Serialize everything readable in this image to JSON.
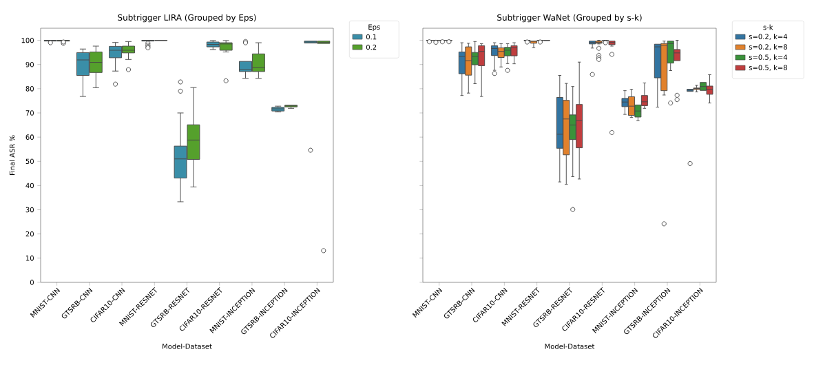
{
  "chart_data": [
    {
      "type": "box",
      "title": "Subtrigger LIRA (Grouped by Eps)",
      "xlabel": "Model-Dataset",
      "ylabel": "Final ASR %",
      "legend_title": "Eps",
      "legend": "top right",
      "categories": [
        "MNIST-CNN",
        "GTSRB-CNN",
        "CIFAR10-CNN",
        "MNIST-RESNET",
        "GTSRB-RESNET",
        "CIFAR10-RESNET",
        "MNIST-INCEPTION",
        "GTSRB-INCEPTION",
        "CIFAR10-INCEPTION"
      ],
      "ylim": [
        0,
        105
      ],
      "yticks": [
        0,
        10,
        20,
        30,
        40,
        50,
        60,
        70,
        80,
        90,
        100
      ],
      "series": [
        {
          "name": "0.1",
          "color": "#3a8ea8",
          "boxes": [
            {
              "low": 99.7,
              "q1": 99.7,
              "median": 99.9,
              "q3": 100,
              "high": 100,
              "outliers": [
                99.0
              ]
            },
            {
              "low": 76.8,
              "q1": 85.5,
              "median": 91.9,
              "q3": 94.9,
              "high": 96.4
            },
            {
              "low": 87.3,
              "q1": 92.8,
              "median": 95.9,
              "q3": 97.5,
              "high": 99.1,
              "outliers": [
                81.9
              ]
            },
            {
              "low": 99.7,
              "q1": 99.7,
              "median": 100,
              "q3": 100,
              "high": 100,
              "outliers": [
                98.8,
                98.0,
                97.4,
                96.9
              ]
            },
            {
              "low": 33.3,
              "q1": 43.1,
              "median": 51.0,
              "q3": 56.3,
              "high": 70.0,
              "outliers": [
                82.8,
                79.0
              ]
            },
            {
              "low": 96.2,
              "q1": 97.3,
              "median": 98.3,
              "q3": 99.3,
              "high": 99.9
            },
            {
              "low": 84.3,
              "q1": 87.1,
              "median": 87.9,
              "q3": 91.3,
              "high": 91.3,
              "outliers": [
                99.5,
                99.0
              ]
            },
            {
              "low": 70.4,
              "q1": 70.8,
              "median": 71.7,
              "q3": 72.3,
              "high": 72.8
            },
            {
              "low": 98.9,
              "q1": 98.9,
              "median": 99.3,
              "q3": 99.7,
              "high": 99.7,
              "outliers": [
                54.6
              ]
            }
          ]
        },
        {
          "name": "0.2",
          "color": "#55a02c",
          "boxes": [
            {
              "low": 99.7,
              "q1": 99.7,
              "median": 99.9,
              "q3": 100,
              "high": 100,
              "outliers": [
                98.8,
                99.3
              ]
            },
            {
              "low": 80.4,
              "q1": 86.7,
              "median": 90.9,
              "q3": 95.2,
              "high": 97.6
            },
            {
              "low": 92.1,
              "q1": 94.8,
              "median": 95.9,
              "q3": 97.6,
              "high": 99.5,
              "outliers": [
                87.9
              ]
            },
            {
              "low": 99.9,
              "q1": 99.9,
              "median": 100,
              "q3": 100,
              "high": 100
            },
            {
              "low": 39.4,
              "q1": 50.8,
              "median": 58.8,
              "q3": 65.1,
              "high": 80.5
            },
            {
              "low": 95.2,
              "q1": 95.9,
              "median": 98.5,
              "q3": 99.0,
              "high": 99.9,
              "outliers": [
                83.3
              ]
            },
            {
              "low": 84.3,
              "q1": 87.1,
              "median": 88.7,
              "q3": 94.4,
              "high": 99.0
            },
            {
              "low": 71.9,
              "q1": 72.5,
              "median": 72.9,
              "q3": 73.2,
              "high": 73.2
            },
            {
              "low": 98.7,
              "q1": 98.7,
              "median": 99.2,
              "q3": 99.7,
              "high": 99.7,
              "outliers": [
                13.1
              ]
            }
          ]
        }
      ]
    },
    {
      "type": "box",
      "title": "Subtrigger WaNet (Grouped by s-k)",
      "xlabel": "Model-Dataset",
      "legend_title": "s-k",
      "legend": "top right",
      "tick_labels": "x",
      "categories": [
        "MNIST-CNN",
        "GTSRB-CNN",
        "CIFAR10-CNN",
        "MNIST-RESNET",
        "GTSRB-RESNET",
        "CIFAR10-RESNET",
        "MNIST-INCEPTION",
        "GTSRB-INCEPTION",
        "CIFAR10-INCEPTION"
      ],
      "ylim": [
        0,
        105
      ],
      "yticks": [
        0,
        10,
        20,
        30,
        40,
        50,
        60,
        70,
        80,
        90,
        100
      ],
      "series": [
        {
          "name": "s=0.2, k=4",
          "color": "#3274a1",
          "boxes": [
            {
              "low": 99.9,
              "q1": 99.9,
              "median": 100,
              "q3": 100,
              "high": 100,
              "outliers": [
                99.4
              ]
            },
            {
              "low": 77.2,
              "q1": 86.2,
              "median": 93.3,
              "q3": 95.2,
              "high": 99.0
            },
            {
              "low": 87.6,
              "q1": 93.7,
              "median": 96.6,
              "q3": 97.8,
              "high": 99.0,
              "outliers": [
                86.3
              ]
            },
            {
              "low": 99.8,
              "q1": 99.8,
              "median": 100,
              "q3": 100,
              "high": 100,
              "outliers": [
                99.3
              ]
            },
            {
              "low": 41.5,
              "q1": 55.4,
              "median": 61.2,
              "q3": 76.4,
              "high": 85.5
            },
            {
              "low": 96.8,
              "q1": 98.5,
              "median": 99.1,
              "q3": 99.7,
              "high": 99.7,
              "outliers": [
                85.9
              ]
            },
            {
              "low": 69.4,
              "q1": 72.6,
              "median": 74.5,
              "q3": 76.0,
              "high": 79.2
            },
            {
              "low": 72.4,
              "q1": 84.5,
              "median": 97.3,
              "q3": 98.4,
              "high": 98.4
            },
            {
              "low": 78.9,
              "q1": 78.9,
              "median": 79.4,
              "q3": 79.8,
              "high": 79.8,
              "outliers": [
                49.1
              ]
            }
          ]
        },
        {
          "name": "s=0.2, k=8",
          "color": "#e1812c",
          "boxes": [
            {
              "low": 99.9,
              "q1": 99.9,
              "median": 100,
              "q3": 100,
              "high": 100,
              "outliers": [
                99.2
              ]
            },
            {
              "low": 78.2,
              "q1": 85.6,
              "median": 91.6,
              "q3": 97.3,
              "high": 98.8
            },
            {
              "low": 89.0,
              "q1": 92.9,
              "median": 95.4,
              "q3": 96.9,
              "high": 98.6
            },
            {
              "low": 97.0,
              "q1": 98.8,
              "median": 99.6,
              "q3": 99.7,
              "high": 99.7
            },
            {
              "low": 40.5,
              "q1": 52.7,
              "median": 67.5,
              "q3": 75.2,
              "high": 82.2
            },
            {
              "low": 98.5,
              "q1": 98.8,
              "median": 99.2,
              "q3": 99.7,
              "high": 100,
              "outliers": [
                96.7,
                93.8,
                92.8,
                92.1
              ]
            },
            {
              "low": 68.1,
              "q1": 69.0,
              "median": 72.8,
              "q3": 76.7,
              "high": 79.8
            },
            {
              "low": 77.4,
              "q1": 79.2,
              "median": 98.0,
              "q3": 98.7,
              "high": 99.7,
              "outliers": [
                24.2
              ]
            },
            {
              "low": 78.7,
              "q1": 79.7,
              "median": 80.1,
              "q3": 80.3,
              "high": 81.4
            }
          ]
        },
        {
          "name": "s=0.5, k=4",
          "color": "#3a923a",
          "boxes": [
            {
              "low": 99.9,
              "q1": 99.9,
              "median": 100,
              "q3": 100,
              "high": 100,
              "outliers": [
                99.4
              ]
            },
            {
              "low": 82.1,
              "q1": 89.9,
              "median": 93.4,
              "q3": 95.0,
              "high": 99.5
            },
            {
              "low": 90.4,
              "q1": 93.6,
              "median": 95.9,
              "q3": 97.1,
              "high": 98.6,
              "outliers": [
                87.6
              ]
            },
            {
              "low": 99.9,
              "q1": 99.9,
              "median": 100,
              "q3": 100,
              "high": 100,
              "outliers": [
                99.3
              ]
            },
            {
              "low": 43.7,
              "q1": 59.0,
              "median": 65.0,
              "q3": 69.2,
              "high": 80.9,
              "outliers": [
                30.1
              ]
            },
            {
              "low": 99.9,
              "q1": 99.9,
              "median": 100,
              "q3": 100,
              "high": 100,
              "outliers": [
                99.0
              ]
            },
            {
              "low": 66.8,
              "q1": 68.3,
              "median": 70.8,
              "q3": 73.3,
              "high": 73.3
            },
            {
              "low": 87.5,
              "q1": 90.6,
              "median": 98.6,
              "q3": 99.7,
              "high": 99.7,
              "outliers": [
                74.1
              ]
            },
            {
              "low": 79.3,
              "q1": 79.3,
              "median": 80.9,
              "q3": 82.6,
              "high": 82.6
            }
          ]
        },
        {
          "name": "s=0.5, k=8",
          "color": "#c03d3e",
          "boxes": [
            {
              "low": 99.9,
              "q1": 99.9,
              "median": 100,
              "q3": 100,
              "high": 100,
              "outliers": [
                99.4
              ]
            },
            {
              "low": 76.8,
              "q1": 89.5,
              "median": 95.4,
              "q3": 97.8,
              "high": 98.6
            },
            {
              "low": 90.3,
              "q1": 93.6,
              "median": 96.9,
              "q3": 97.8,
              "high": 99.0
            },
            {
              "low": 99.9,
              "q1": 99.9,
              "median": 100,
              "q3": 100,
              "high": 100
            },
            {
              "low": 42.7,
              "q1": 55.6,
              "median": 66.9,
              "q3": 73.5,
              "high": 91.0
            },
            {
              "low": 97.6,
              "q1": 98.2,
              "median": 99.1,
              "q3": 99.7,
              "high": 99.7,
              "outliers": [
                94.2,
                61.9
              ]
            },
            {
              "low": 71.9,
              "q1": 73.0,
              "median": 74.6,
              "q3": 77.2,
              "high": 82.4
            },
            {
              "low": 91.6,
              "q1": 91.6,
              "median": 94.8,
              "q3": 96.2,
              "high": 100,
              "outliers": [
                77.3,
                75.5
              ]
            },
            {
              "low": 74.1,
              "q1": 77.7,
              "median": 79.8,
              "q3": 81.1,
              "high": 85.8
            }
          ]
        }
      ]
    }
  ]
}
